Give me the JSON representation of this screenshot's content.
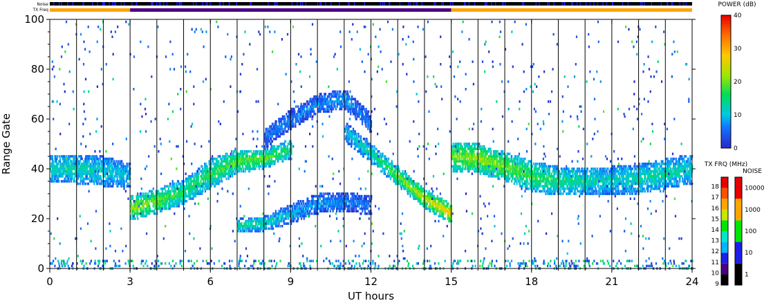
{
  "chart_data": {
    "type": "heatmap",
    "title": "",
    "xlabel": "UT hours",
    "ylabel": "Range Gate",
    "xlim": [
      0,
      24
    ],
    "ylim": [
      0,
      100
    ],
    "x_ticks": [
      "0",
      "3",
      "6",
      "9",
      "12",
      "15",
      "18",
      "21",
      "24"
    ],
    "x_tick_values": [
      0,
      3,
      6,
      9,
      12,
      15,
      18,
      21,
      24
    ],
    "y_ticks": [
      "0",
      "20",
      "40",
      "60",
      "80",
      "100"
    ],
    "y_tick_values": [
      0,
      20,
      40,
      60,
      80,
      100
    ],
    "scan_boundaries_hours": [
      1,
      2,
      3,
      4,
      5,
      6,
      7,
      8,
      9,
      10,
      11,
      12,
      13,
      14,
      15,
      16,
      17,
      18,
      19,
      20,
      21,
      22,
      23
    ],
    "noise_strip_label": "Noise",
    "tx_freq_strip_label": "TX Freq",
    "tx_freq_segments": [
      {
        "start": 0,
        "end": 3,
        "color": "#ffa500"
      },
      {
        "start": 3,
        "end": 15,
        "color": "#4b0082"
      },
      {
        "start": 15,
        "end": 24,
        "color": "#ffa500"
      }
    ],
    "echo_bands": [
      {
        "name": "lower band 0-3 UT",
        "x": [
          0,
          1,
          2,
          3
        ],
        "center_gate": [
          40,
          40,
          39,
          37
        ],
        "half_width": [
          5,
          5,
          5,
          4
        ],
        "power_db": [
          12,
          13,
          12,
          10
        ]
      },
      {
        "name": "rising band 3-9 UT",
        "x": [
          3,
          4,
          5,
          6,
          7,
          8,
          9
        ],
        "center_gate": [
          24,
          27,
          31,
          38,
          43,
          44,
          48
        ],
        "half_width": [
          4,
          4,
          4,
          5,
          4,
          3,
          3
        ],
        "power_db": [
          22,
          20,
          16,
          17,
          19,
          20,
          16
        ]
      },
      {
        "name": "upper arc 8-12 UT",
        "x": [
          8,
          9,
          10,
          11,
          12
        ],
        "center_gate": [
          52,
          60,
          66,
          68,
          58
        ],
        "half_width": [
          3,
          3,
          3,
          3,
          3
        ],
        "power_db": [
          6,
          7,
          7,
          8,
          6
        ]
      },
      {
        "name": "lower arc 7-12 UT",
        "x": [
          7,
          8,
          9,
          10,
          11,
          12
        ],
        "center_gate": [
          17,
          18,
          22,
          26,
          27,
          25
        ],
        "half_width": [
          2,
          2,
          3,
          3,
          3,
          3
        ],
        "power_db": [
          14,
          15,
          9,
          8,
          7,
          6
        ]
      },
      {
        "name": "descending band 11-15 UT",
        "x": [
          11,
          12,
          13,
          14,
          15
        ],
        "center_gate": [
          55,
          46,
          37,
          28,
          22
        ],
        "half_width": [
          3,
          3,
          3,
          3,
          3
        ],
        "power_db": [
          10,
          14,
          20,
          24,
          28
        ]
      },
      {
        "name": "evening band 15-24 UT",
        "x": [
          15,
          16,
          17,
          18,
          19,
          20,
          21,
          22,
          23,
          24
        ],
        "center_gate": [
          45,
          44,
          41,
          37,
          35,
          35,
          35,
          36,
          38,
          40
        ],
        "half_width": [
          5,
          5,
          5,
          5,
          5,
          5,
          5,
          5,
          5,
          5
        ],
        "power_db": [
          20,
          22,
          20,
          18,
          15,
          13,
          12,
          13,
          14,
          12
        ]
      }
    ],
    "colorbars": {
      "power": {
        "label": "POWER (dB)",
        "range": [
          0,
          40
        ],
        "ticks": [
          "0",
          "10",
          "20",
          "30",
          "40"
        ]
      },
      "tx_freq": {
        "label": "TX FRQ (MHz)",
        "ticks": [
          "9",
          "10",
          "11",
          "12",
          "13",
          "14",
          "15",
          "16",
          "17",
          "18"
        ],
        "colors": [
          "#000000",
          "#4b0082",
          "#1e1ee6",
          "#00b4ff",
          "#00e6c8",
          "#00e600",
          "#c8e600",
          "#ffa500",
          "#ff5000",
          "#e60000"
        ]
      },
      "noise": {
        "label": "NOISE",
        "ticks": [
          "1",
          "10",
          "100",
          "1000",
          "10000"
        ],
        "colors": [
          "#000000",
          "#1e1ee6",
          "#00e600",
          "#ffa500",
          "#e60000"
        ]
      }
    }
  }
}
